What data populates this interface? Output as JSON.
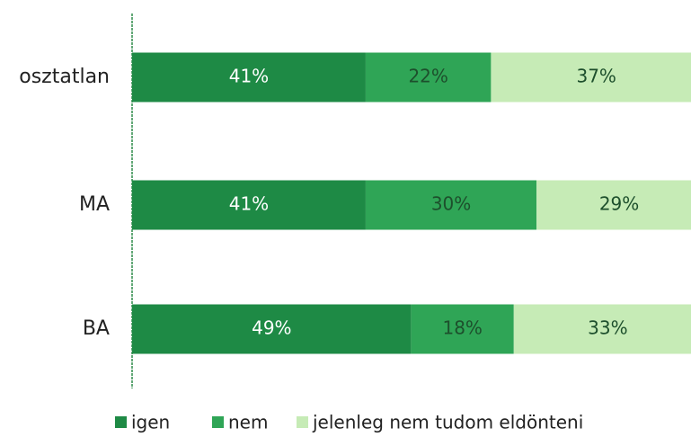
{
  "chart_data": {
    "type": "stacked_bar_horizontal",
    "categories": [
      "osztatlan",
      "MA",
      "BA"
    ],
    "xlim": [
      0,
      100
    ],
    "series": [
      {
        "name": "igen",
        "color": "#1e8a45",
        "values": [
          41,
          41,
          49
        ],
        "value_labels": [
          "41%",
          "41%",
          "49%"
        ]
      },
      {
        "name": "nem",
        "color": "#2fa556",
        "values": [
          22,
          30,
          18
        ],
        "value_labels": [
          "22%",
          "30%",
          "18%"
        ]
      },
      {
        "name": "jelenleg nem tudom eldönteni",
        "color": "#c6ebb6",
        "values": [
          37,
          29,
          33
        ],
        "value_labels": [
          "37%",
          "29%",
          "33%"
        ]
      }
    ],
    "legend": "bottom"
  }
}
